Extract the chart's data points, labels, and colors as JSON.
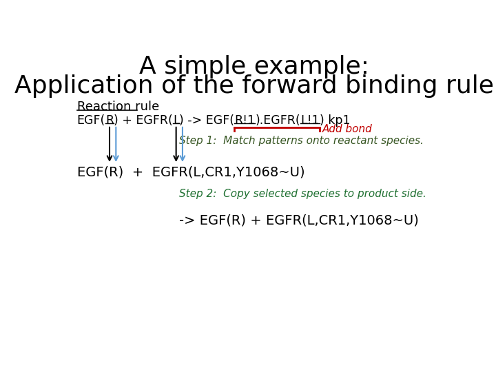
{
  "title_line1": "A simple example:",
  "title_line2": "Application of the forward binding rule",
  "title_fontsize": 26,
  "bg_color": "#ffffff",
  "reaction_rule_label": "Reaction rule",
  "add_bond_label": "Add bond",
  "step1_text": "Step 1:  Match patterns onto reactant species.",
  "step2_text": "Step 2:  Copy selected species to product side.",
  "species_line": "EGF(R)  +  EGFR(L,CR1,Y1068~U)",
  "product_line": "-> EGF(R) + EGFR(L,CR1,Y1068~U)",
  "arrow_color_black": "#000000",
  "arrow_color_blue": "#5b9bd5",
  "bracket_color": "#c00000",
  "step1_color": "#375623",
  "step2_color": "#1f7031",
  "add_bond_color": "#c00000",
  "rule_fontsize": 12.5,
  "species_fontsize": 14,
  "label_fontsize": 13,
  "step_fontsize": 11
}
